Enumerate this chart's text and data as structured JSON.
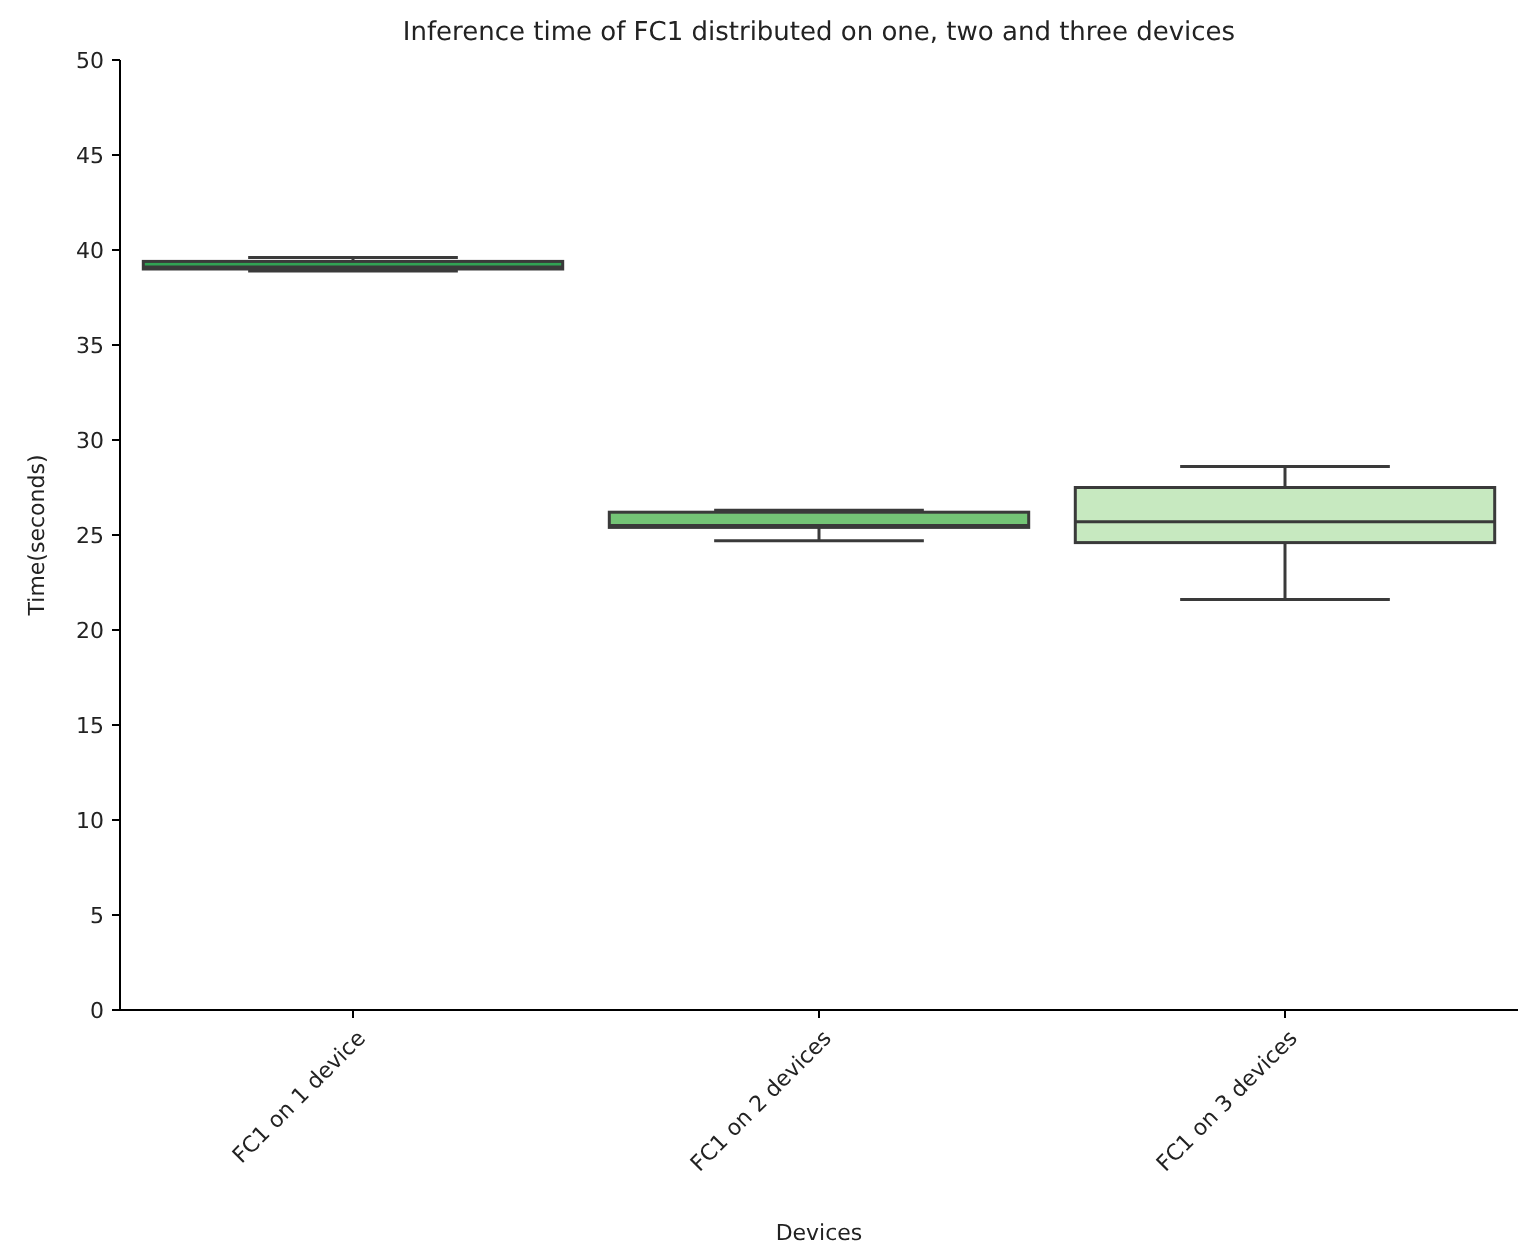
{
  "chart_data": {
    "type": "box",
    "title": "Inference time of FC1 distributed on one, two and three devices",
    "xlabel": "Devices",
    "ylabel": "Time(seconds)",
    "categories": [
      "FC1 on 1 device",
      "FC1 on 2 devices",
      "FC1 on 3 devices"
    ],
    "colors": [
      "#31a354",
      "#74c476",
      "#c7e9c0"
    ],
    "boxes": [
      {
        "low": 38.9,
        "q1": 39.0,
        "median": 39.1,
        "q3": 39.4,
        "high": 39.6
      },
      {
        "low": 24.7,
        "q1": 25.4,
        "median": 25.5,
        "q3": 26.2,
        "high": 26.3
      },
      {
        "low": 21.6,
        "q1": 24.6,
        "median": 25.7,
        "q3": 27.5,
        "high": 28.6
      }
    ],
    "ylim": [
      0,
      50
    ],
    "yticks": [
      0,
      5,
      10,
      15,
      20,
      25,
      30,
      35,
      40,
      45,
      50
    ],
    "grid": false
  }
}
